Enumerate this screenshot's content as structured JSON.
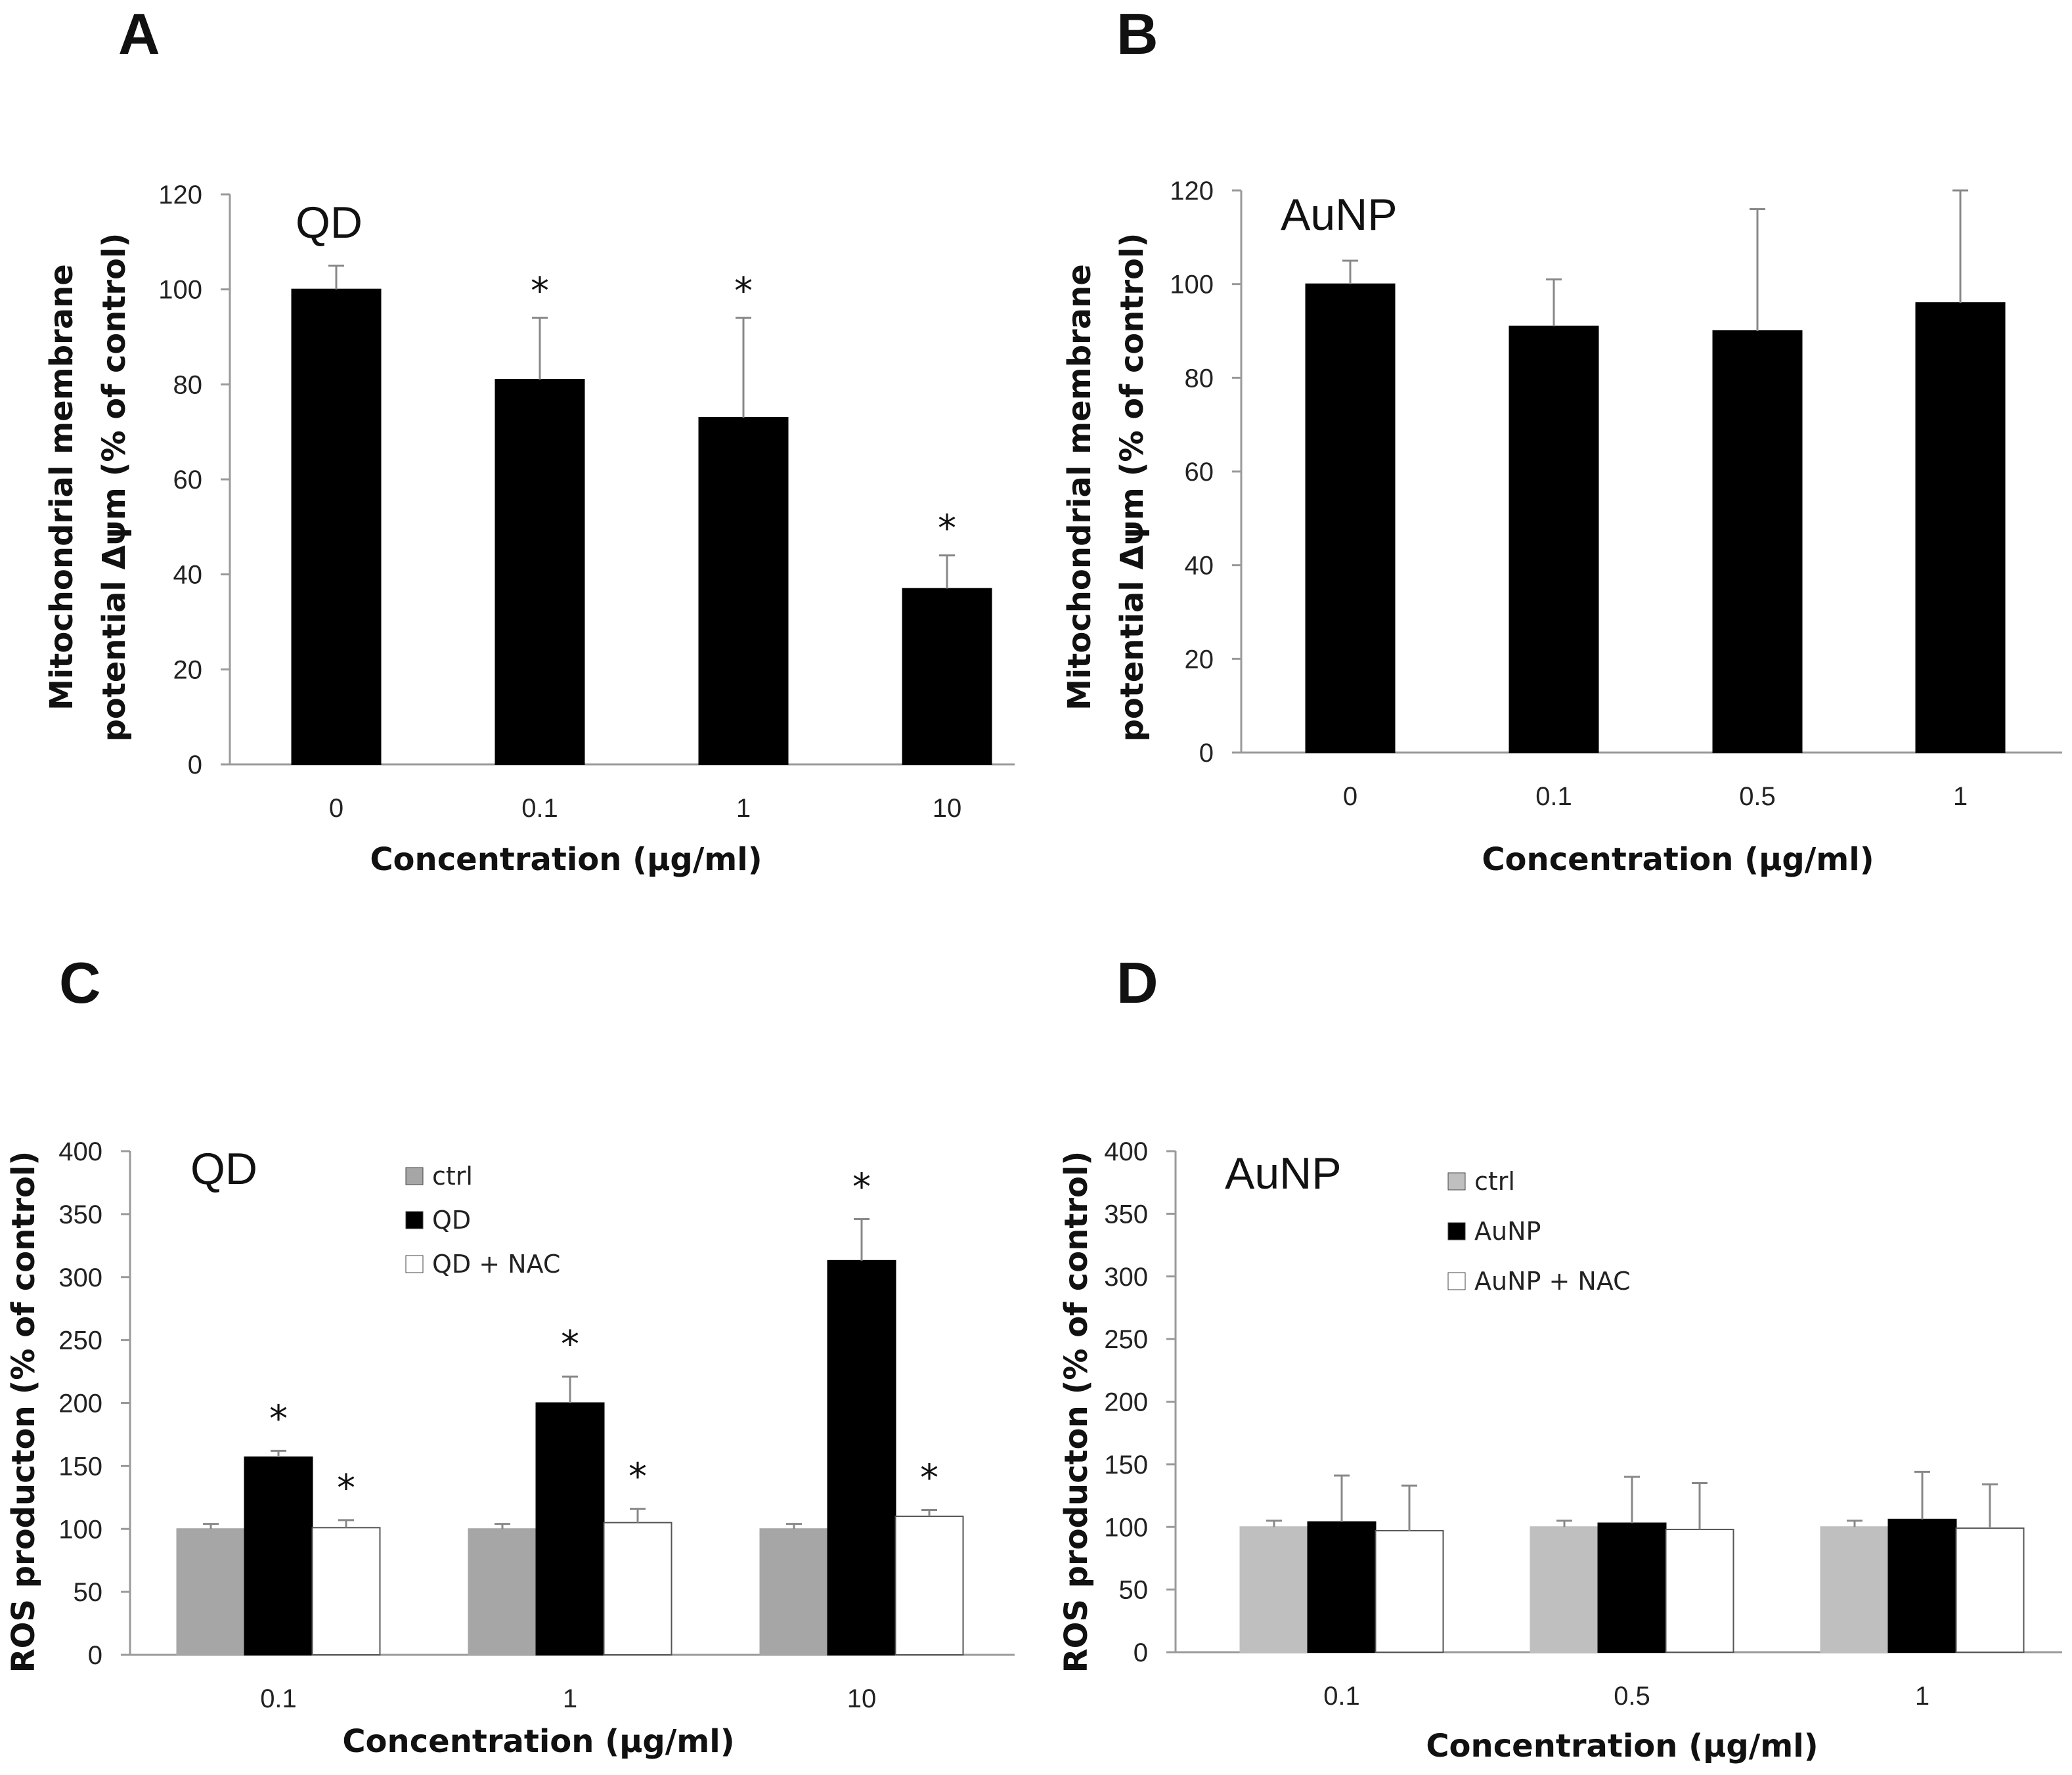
{
  "chart_data": [
    {
      "panel": "A",
      "type": "bar",
      "title": "QD",
      "xlabel": "Concentration (μg/ml)",
      "ylabel_line1": "Mitochondrial membrane",
      "ylabel_line2": "potential Δψm (% of control)",
      "ylim": [
        0,
        120
      ],
      "yticks": [
        "0",
        "20",
        "40",
        "60",
        "80",
        "100",
        "120"
      ],
      "categories": [
        "0",
        "0.1",
        "1",
        "10"
      ],
      "series": [
        {
          "name": "QD",
          "color": "#000000",
          "values": [
            100,
            81,
            73,
            37
          ],
          "errors": [
            5,
            13,
            21,
            7
          ],
          "stars": [
            false,
            true,
            true,
            true
          ]
        }
      ]
    },
    {
      "panel": "B",
      "type": "bar",
      "title": "AuNP",
      "xlabel": "Concentration (μg/ml)",
      "ylabel_line1": "Mitochondrial membrane",
      "ylabel_line2": "potential Δψm (% of control)",
      "ylim": [
        0,
        120
      ],
      "yticks": [
        "0",
        "20",
        "40",
        "60",
        "80",
        "100",
        "120"
      ],
      "categories": [
        "0",
        "0.1",
        "0.5",
        "1"
      ],
      "series": [
        {
          "name": "AuNP",
          "color": "#000000",
          "values": [
            100,
            91,
            90,
            96
          ],
          "errors": [
            5,
            10,
            26,
            24
          ],
          "stars": [
            false,
            false,
            false,
            false
          ]
        }
      ]
    },
    {
      "panel": "C",
      "type": "bar",
      "title": "QD",
      "xlabel": "Concentration (μg/ml)",
      "ylabel": "ROS producton  (% of control)",
      "ylim": [
        0,
        400
      ],
      "yticks": [
        "0",
        "50",
        "100",
        "150",
        "200",
        "250",
        "300",
        "350",
        "400"
      ],
      "categories": [
        "0.1",
        "1",
        "10"
      ],
      "series": [
        {
          "name": "ctrl",
          "color": "#a6a6a6",
          "values": [
            100,
            100,
            100
          ],
          "errors": [
            4,
            4,
            4
          ],
          "stars": [
            false,
            false,
            false
          ]
        },
        {
          "name": "QD",
          "color": "#000000",
          "values": [
            157,
            200,
            313
          ],
          "errors": [
            5,
            21,
            33
          ],
          "stars": [
            true,
            true,
            true
          ]
        },
        {
          "name": "QD + NAC",
          "color": "#ffffff",
          "values": [
            101,
            105,
            110
          ],
          "errors": [
            6,
            11,
            5
          ],
          "stars": [
            true,
            true,
            true
          ]
        }
      ]
    },
    {
      "panel": "D",
      "type": "bar",
      "title": "AuNP",
      "xlabel": "Concentration (μg/ml)",
      "ylabel": "ROS producton  (% of control)",
      "ylim": [
        0,
        400
      ],
      "yticks": [
        "0",
        "50",
        "100",
        "150",
        "200",
        "250",
        "300",
        "350",
        "400"
      ],
      "categories": [
        "0.1",
        "0.5",
        "1"
      ],
      "series": [
        {
          "name": "ctrl",
          "color": "#bfbfbf",
          "values": [
            100,
            100,
            100
          ],
          "errors": [
            5,
            5,
            5
          ],
          "stars": [
            false,
            false,
            false
          ]
        },
        {
          "name": "AuNP",
          "color": "#000000",
          "values": [
            104,
            103,
            106
          ],
          "errors": [
            37,
            37,
            38
          ],
          "stars": [
            false,
            false,
            false
          ]
        },
        {
          "name": "AuNP + NAC",
          "color": "#ffffff",
          "values": [
            97,
            98,
            99
          ],
          "errors": [
            36,
            37,
            35
          ],
          "stars": [
            false,
            false,
            false
          ]
        }
      ]
    }
  ],
  "star_symbol": "*"
}
